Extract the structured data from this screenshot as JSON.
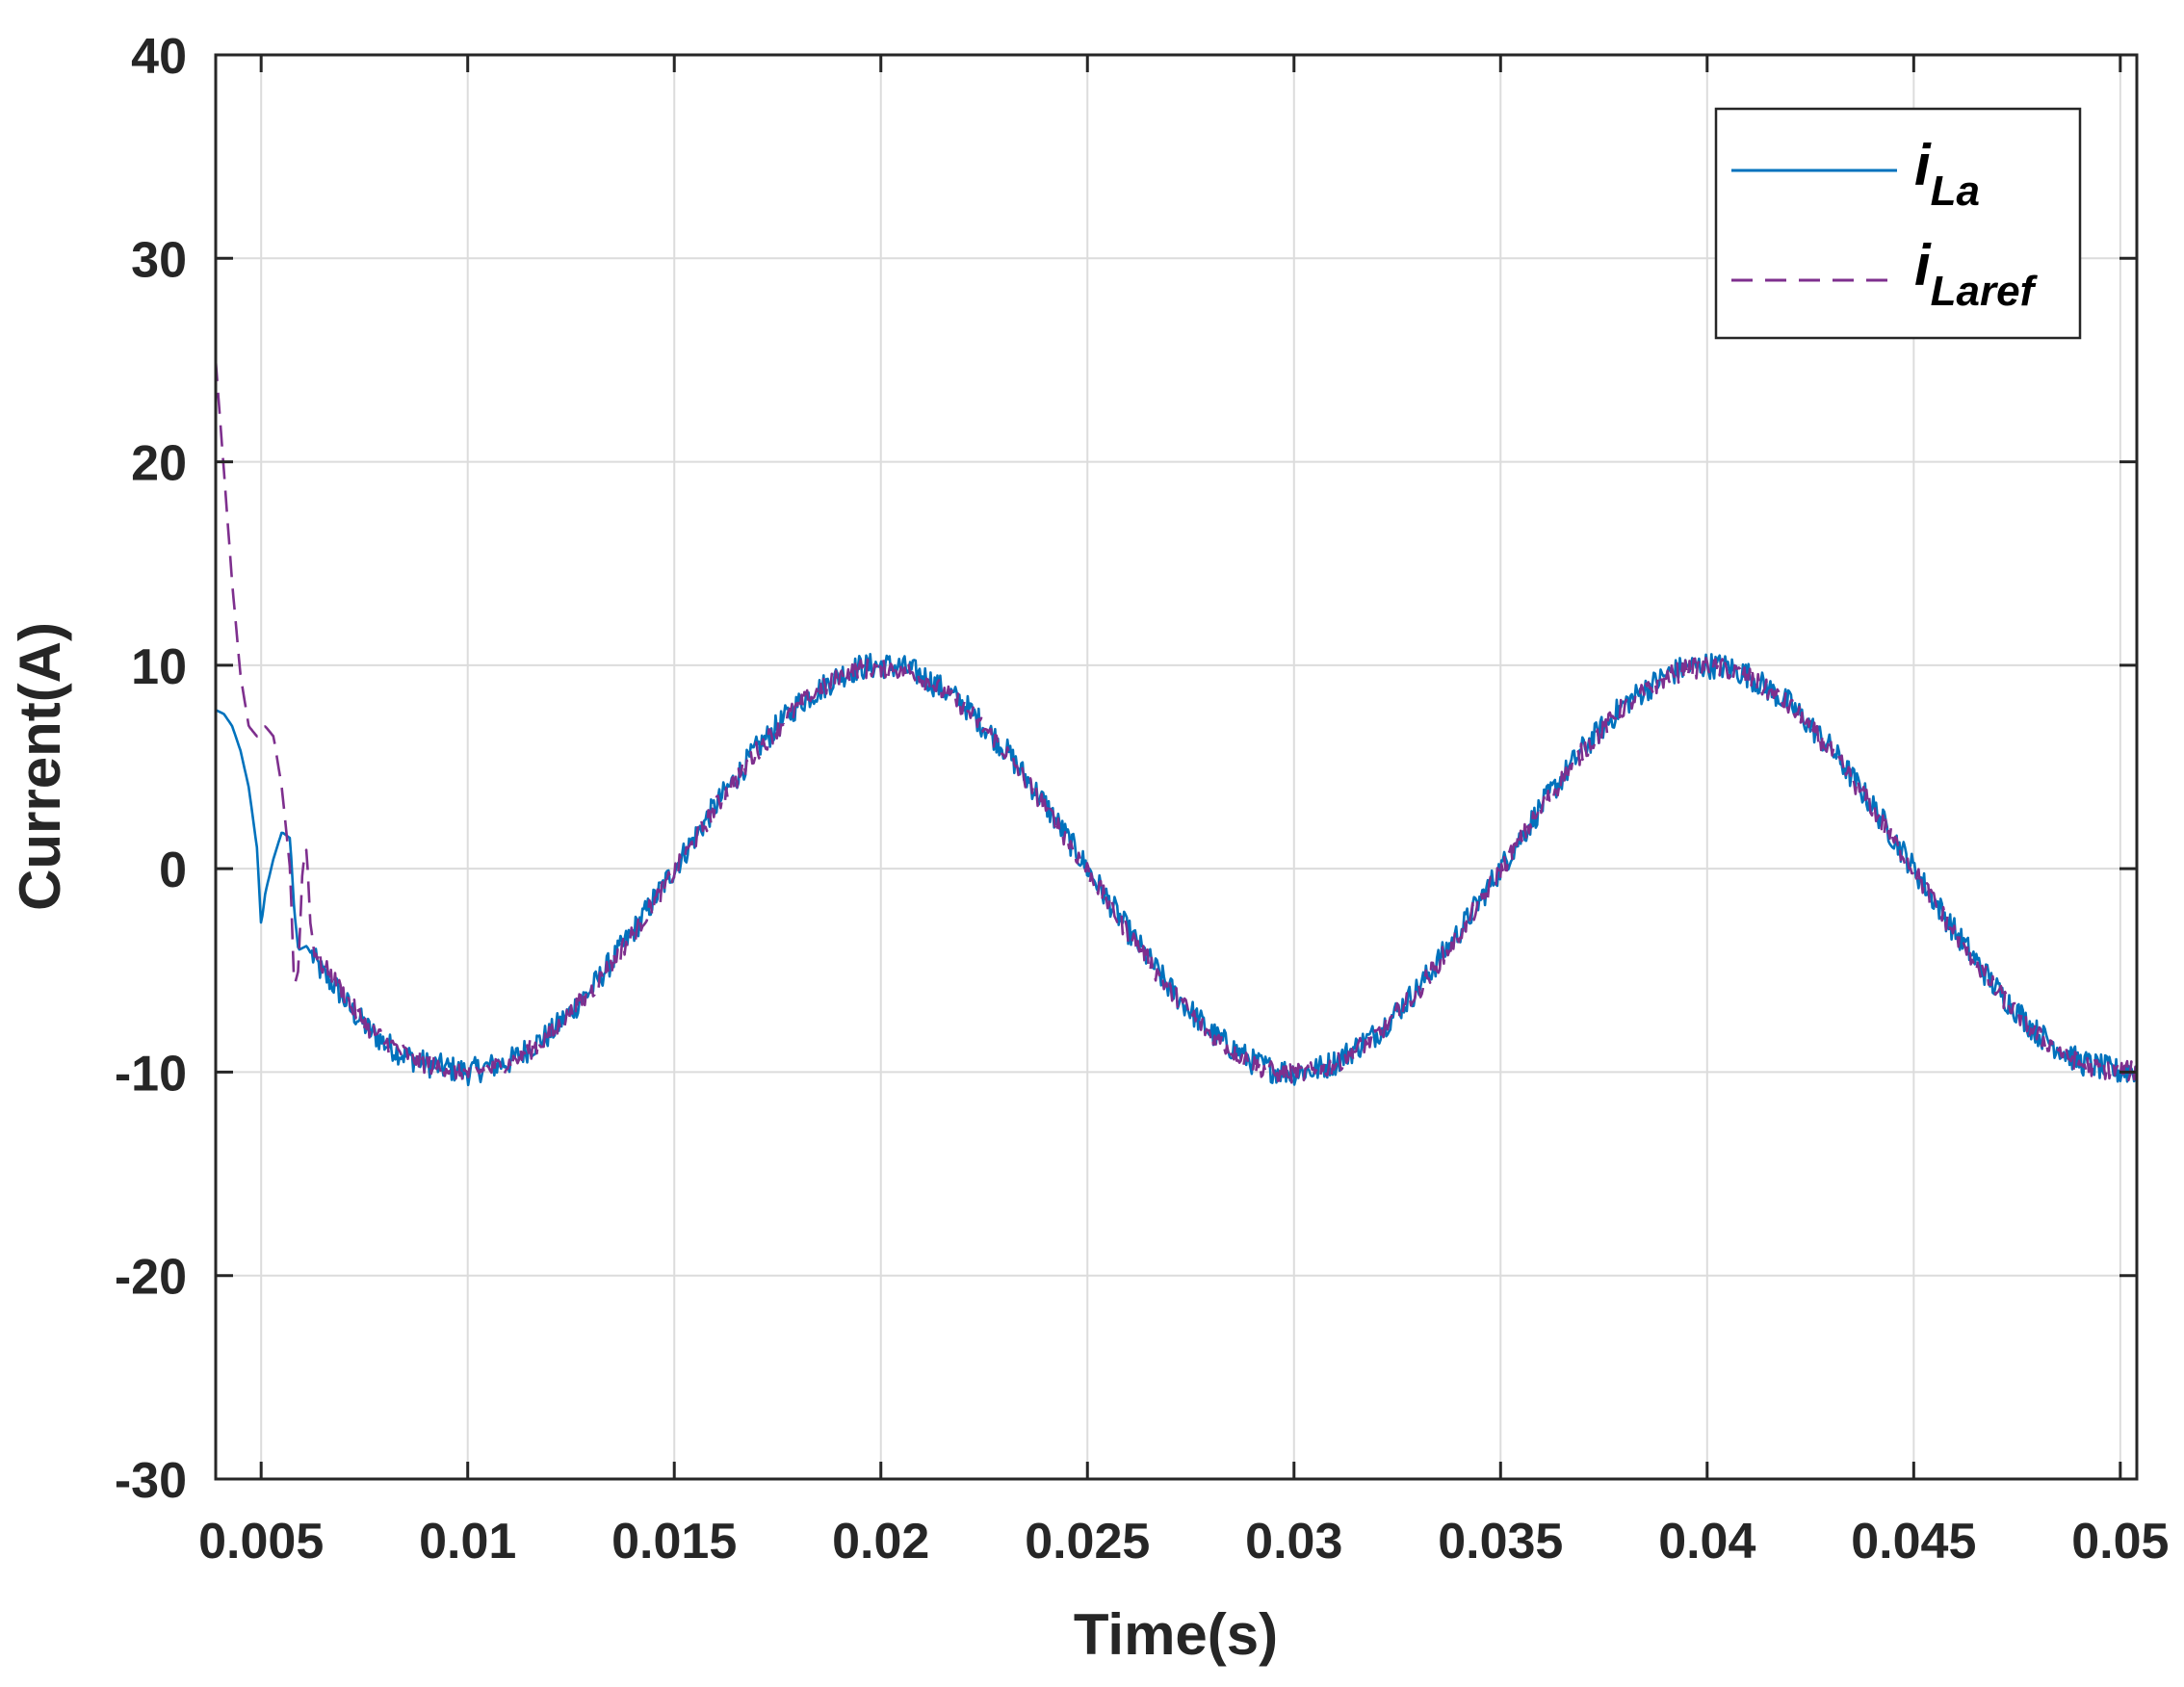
{
  "chart_data": {
    "type": "line",
    "title": "",
    "xlabel": "Time(s)",
    "ylabel": "Current(A)",
    "xlim": [
      0.0039,
      0.0504
    ],
    "ylim": [
      -30,
      40
    ],
    "xticks": [
      0.005,
      0.01,
      0.015,
      0.02,
      0.025,
      0.03,
      0.035,
      0.04,
      0.045,
      0.05
    ],
    "xtick_labels": [
      "0.005",
      "0.01",
      "0.015",
      "0.02",
      "0.025",
      "0.03",
      "0.035",
      "0.04",
      "0.045",
      "0.05"
    ],
    "yticks": [
      -30,
      -20,
      -10,
      0,
      10,
      20,
      30,
      40
    ],
    "ytick_labels": [
      "-30",
      "-20",
      "-10",
      "0",
      "10",
      "20",
      "30",
      "40"
    ],
    "grid": true,
    "legend_position": "top-right",
    "series": [
      {
        "name_main": "i",
        "name_sub": "La",
        "color": "#0072BD",
        "style": "solid",
        "x": [
          0.0039,
          0.0041,
          0.0043,
          0.0045,
          0.0047,
          0.0049,
          0.005,
          0.0051,
          0.0053,
          0.0055,
          0.0057,
          0.0058,
          0.0059,
          0.0061,
          0.0063,
          0.0065,
          0.0068,
          0.0072,
          0.0076,
          0.008,
          0.0085,
          0.009,
          0.0095,
          0.01,
          0.011,
          0.012,
          0.013,
          0.014,
          0.015,
          0.016,
          0.017,
          0.018,
          0.019,
          0.0195,
          0.02,
          0.0205,
          0.021,
          0.022,
          0.023,
          0.024,
          0.025,
          0.026,
          0.027,
          0.028,
          0.029,
          0.0295,
          0.03,
          0.0305,
          0.031,
          0.032,
          0.033,
          0.034,
          0.035,
          0.036,
          0.037,
          0.038,
          0.039,
          0.0395,
          0.04,
          0.0405,
          0.041,
          0.042,
          0.043,
          0.044,
          0.045,
          0.046,
          0.047,
          0.048,
          0.049,
          0.05,
          0.0504
        ],
        "y": [
          7.8,
          7.6,
          7.0,
          5.8,
          4.0,
          1.0,
          -2.8,
          -1.2,
          0.5,
          1.8,
          1.5,
          -2.0,
          -4.0,
          -3.8,
          -4.5,
          -5.2,
          -5.8,
          -7.0,
          -7.9,
          -8.6,
          -9.2,
          -9.6,
          -9.8,
          -10.0,
          -9.5,
          -8.1,
          -5.9,
          -3.1,
          0.0,
          3.1,
          5.9,
          8.1,
          9.5,
          9.9,
          10.0,
          9.9,
          9.5,
          8.1,
          5.9,
          3.1,
          0.0,
          -3.1,
          -5.9,
          -8.1,
          -9.5,
          -9.9,
          -10.0,
          -9.9,
          -9.5,
          -8.1,
          -5.9,
          -3.1,
          0.0,
          3.1,
          5.9,
          8.1,
          9.5,
          9.9,
          10.0,
          9.9,
          9.5,
          8.1,
          5.9,
          3.1,
          0.0,
          -3.1,
          -5.9,
          -8.1,
          -9.5,
          -10.0,
          -9.9
        ]
      },
      {
        "name_main": "i",
        "name_sub": "Laref",
        "color": "#7E2F8E",
        "style": "dashed",
        "x": [
          0.0039,
          0.0041,
          0.0043,
          0.0045,
          0.0047,
          0.0049,
          0.0051,
          0.0053,
          0.0055,
          0.0057,
          0.0058,
          0.0059,
          0.006,
          0.0061,
          0.0062,
          0.0063,
          0.0065,
          0.0068,
          0.0072,
          0.0076,
          0.008,
          0.0085,
          0.009,
          0.0095,
          0.01,
          0.011,
          0.012,
          0.013,
          0.014,
          0.015,
          0.016,
          0.017,
          0.018,
          0.019,
          0.0195,
          0.02,
          0.0205,
          0.021,
          0.022,
          0.023,
          0.024,
          0.025,
          0.026,
          0.027,
          0.028,
          0.029,
          0.0295,
          0.03,
          0.0305,
          0.031,
          0.032,
          0.033,
          0.034,
          0.035,
          0.036,
          0.037,
          0.038,
          0.039,
          0.0395,
          0.04,
          0.0405,
          0.041,
          0.042,
          0.043,
          0.044,
          0.045,
          0.046,
          0.047,
          0.048,
          0.049,
          0.05,
          0.0504
        ],
        "y": [
          25.0,
          19.5,
          14.0,
          9.5,
          7.0,
          6.5,
          7.0,
          6.5,
          4.0,
          0.0,
          -5.8,
          -5.0,
          0.0,
          1.0,
          -3.0,
          -4.0,
          -4.8,
          -5.6,
          -6.8,
          -7.8,
          -8.5,
          -9.1,
          -9.6,
          -9.8,
          -10.1,
          -9.6,
          -8.2,
          -6.0,
          -3.2,
          -0.2,
          3.0,
          5.8,
          8.0,
          9.4,
          9.8,
          9.9,
          9.8,
          9.4,
          8.0,
          5.8,
          3.0,
          -0.1,
          -3.2,
          -6.0,
          -8.2,
          -9.6,
          -10.0,
          -10.1,
          -10.0,
          -9.6,
          -8.2,
          -6.0,
          -3.2,
          -0.1,
          3.0,
          5.8,
          8.0,
          9.4,
          9.8,
          9.9,
          9.8,
          9.4,
          8.0,
          5.8,
          3.0,
          -0.1,
          -3.2,
          -6.0,
          -8.2,
          -9.6,
          -10.0,
          -9.9
        ]
      }
    ]
  }
}
